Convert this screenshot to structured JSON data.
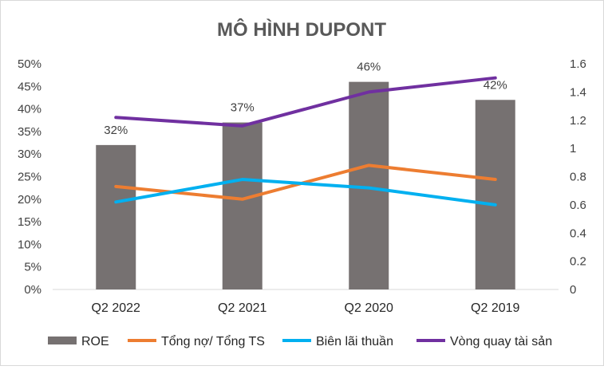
{
  "chart_data": {
    "type": "bar",
    "title": "MÔ HÌNH DUPONT",
    "categories": [
      "Q2 2022",
      "Q2 2021",
      "Q2 2020",
      "Q2 2019"
    ],
    "y_left_ticks": [
      "0%",
      "5%",
      "10%",
      "15%",
      "20%",
      "25%",
      "30%",
      "35%",
      "40%",
      "45%",
      "50%"
    ],
    "y_right_ticks": [
      "0",
      "0.2",
      "0.4",
      "0.6",
      "0.8",
      "1",
      "1.2",
      "1.4",
      "1.6"
    ],
    "ylim_left": [
      0,
      0.5
    ],
    "ylim_right": [
      0,
      1.6
    ],
    "grid": false,
    "legend_position": "bottom",
    "series": [
      {
        "name": "ROE",
        "kind": "bar",
        "axis": "left",
        "color": "#767171",
        "values": [
          0.32,
          0.37,
          0.46,
          0.42
        ],
        "labels": [
          "32%",
          "37%",
          "46%",
          "42%"
        ]
      },
      {
        "name": "Tổng nợ/ Tổng TS",
        "kind": "line",
        "axis": "right",
        "color": "#ED7D31",
        "values": [
          0.73,
          0.64,
          0.88,
          0.78
        ]
      },
      {
        "name": "Biên lãi thuần",
        "kind": "line",
        "axis": "right",
        "color": "#00B0F0",
        "values": [
          0.62,
          0.78,
          0.72,
          0.6
        ]
      },
      {
        "name": "Vòng quay tài sản",
        "kind": "line",
        "axis": "right",
        "color": "#7030A0",
        "values": [
          1.22,
          1.16,
          1.4,
          1.5
        ]
      }
    ]
  }
}
